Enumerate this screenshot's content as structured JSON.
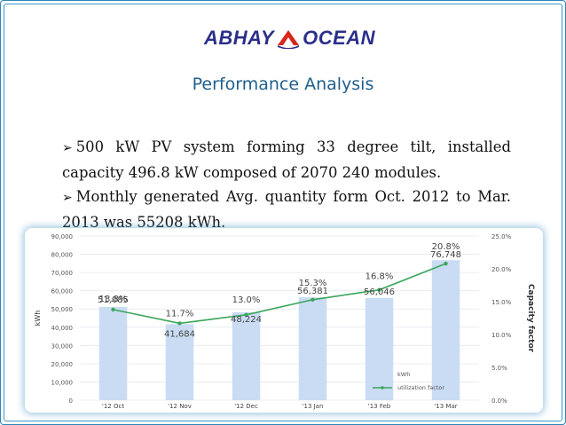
{
  "header": {
    "logo_text_left": "ABHAY",
    "logo_text_right": "OCEAN",
    "title": "Performance Analysis"
  },
  "bullets": [
    {
      "marker": "➢",
      "text": "500 kW PV system forming 33 degree tilt, installed capacity 496.8 kW composed of 2070 240 modules."
    },
    {
      "marker": "➢",
      "text": "Monthly generated Avg. quantity form Oct. 2012 to Mar. 2013 was 55208 kWh."
    }
  ],
  "colors": {
    "bar": "#c9dcf3",
    "line": "#3aa65a",
    "title": "#1f5f8c",
    "frame": "#2a87b8",
    "logo_text": "#2b2f8a",
    "logo_red": "#d9261c"
  },
  "chart_data": {
    "type": "bar",
    "categories": [
      "'12 Oct",
      "'12 Nov",
      "'12 Dec",
      "'13 Jan",
      "'13 Feb",
      "'13 Mar"
    ],
    "series": [
      {
        "name": "kWh",
        "type": "bar",
        "axis": "left",
        "values": [
          51085,
          41684,
          48224,
          56381,
          56046,
          76748
        ],
        "labels": [
          "51,085",
          "41,684",
          "48,224",
          "56,381",
          "56,046",
          "76,748"
        ]
      },
      {
        "name": "utilization factor",
        "type": "line",
        "axis": "right",
        "values": [
          13.8,
          11.7,
          13.0,
          15.3,
          16.8,
          20.8
        ],
        "labels": [
          "13.8%",
          "11.7%",
          "13.0%",
          "15.3%",
          "16.8%",
          "20.8%"
        ]
      }
    ],
    "ylabel": "kWh",
    "y2label": "Capacity factor",
    "ylim": [
      0,
      90000
    ],
    "y2lim": [
      0,
      25
    ],
    "yticks": [
      "0",
      "10,000",
      "20,000",
      "30,000",
      "40,000",
      "50,000",
      "60,000",
      "70,000",
      "80,000",
      "90,000"
    ],
    "y2ticks": [
      "0.0%",
      "5.0%",
      "10.0%",
      "15.0%",
      "20.0%",
      "25.0%"
    ],
    "legend_position": "bottom-right"
  }
}
